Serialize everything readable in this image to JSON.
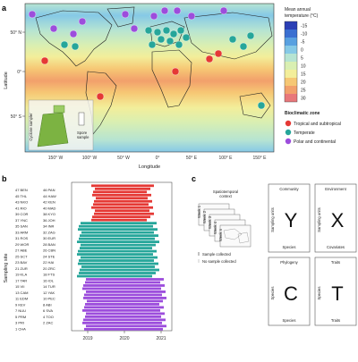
{
  "panel_a": {
    "label": "a",
    "y_axis_title": "Latitude",
    "x_axis_title": "Longitude",
    "lat_ticks": [
      "50° N",
      "0°",
      "50° S"
    ],
    "lon_ticks": [
      "150° W",
      "100° W",
      "50° W",
      "0°",
      "50° E",
      "100° E",
      "150° E"
    ],
    "temp_legend_title_line1": "Mean annual",
    "temp_legend_title_line2": "temperature (°C)",
    "temp_ticks": [
      "-15",
      "-10",
      "-5",
      "0",
      "5",
      "10",
      "15",
      "20",
      "25",
      "30"
    ],
    "temp_colors": [
      "#2b3fb5",
      "#3a6fd1",
      "#58a0e0",
      "#86c9e6",
      "#b6e4d2",
      "#d9efb2",
      "#f3ee9a",
      "#f6c774",
      "#f2a06b",
      "#e8777a"
    ],
    "zone_legend_title": "Bioclimatic zone",
    "zones": [
      {
        "name": "Tropical and subtropical",
        "color": "#e53935"
      },
      {
        "name": "Temperate",
        "color": "#26a69a"
      },
      {
        "name": "Polar and continental",
        "color": "#9c4ddc"
      }
    ],
    "inset_label_1": "Cyclone sampler",
    "inset_label_2": "Spore",
    "inset_label_3": "sample"
  },
  "panel_b": {
    "label": "b",
    "y_axis_title": "Sampling site",
    "x_ticks": [
      "2019",
      "2020",
      "2021"
    ],
    "sites_left": [
      "47 BEN",
      "45 THL",
      "43 NKO",
      "41 RIO",
      "39 COR",
      "37 YNC",
      "35 SAN",
      "33 ARM",
      "31 ROS",
      "29 WOR",
      "27 ABE",
      "25 SCT",
      "23 BAV",
      "21 ZUR",
      "19 KLA",
      "17 TAR",
      "15 VII",
      "13 CAM",
      "11 EDM",
      "9 KEV",
      "7 NUU",
      "5 PRM",
      "3 PRI",
      "1 CHA"
    ],
    "sites_right": [
      "46 PAN",
      "44 HAW",
      "42 KEN",
      "40 MAD",
      "38 KYO",
      "36 JOH",
      "34 INR",
      "32 ZAG",
      "30 EUR",
      "28 BAN",
      "26 CBN",
      "24 STE",
      "22 HAI",
      "20 ZRC",
      "18 FTS",
      "16 IOL",
      "14 TUR",
      "12 YAK",
      "10 PEC",
      "8 ABI",
      "6 SVA",
      "4 TOO",
      "2 ZAC"
    ]
  },
  "panel_c": {
    "label": "c",
    "context_line1": "Spatiotemporal",
    "context_line2": "context",
    "weeks": [
      "Week 1",
      "Week 2",
      "Week 3",
      "Week 4",
      "Week n"
    ],
    "legend_collected": "Sample collected",
    "legend_not_collected": "No sample collected",
    "boxes": [
      {
        "title": "Community",
        "letter": "Y",
        "side": "Sampling units",
        "bottom": "Species"
      },
      {
        "title": "Environment",
        "letter": "X",
        "side": "Sampling units",
        "bottom": "Covariates"
      },
      {
        "title": "Phylogeny",
        "letter": "C",
        "side": "Species",
        "bottom": "Species"
      },
      {
        "title": "Traits",
        "letter": "T",
        "side": "Species",
        "bottom": "Traits"
      }
    ]
  }
}
